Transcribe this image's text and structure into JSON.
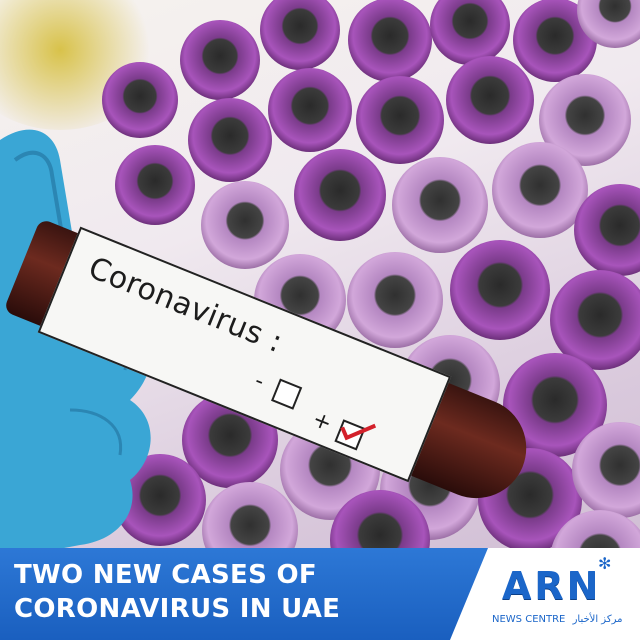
{
  "photo": {
    "vial_label": "Coronavirus :",
    "negative_mark": "-",
    "positive_mark": "+",
    "checked_icon": "check-mark-icon",
    "colors": {
      "glove": "#39a7d6",
      "tube_cap": "#a14bb3",
      "tube_cap_light": "#c98fd4",
      "check": "#d3212b"
    }
  },
  "banner": {
    "headline_line1": "TWO NEW CASES OF",
    "headline_line2": "CORONAVIRUS IN UAE",
    "colors": {
      "blue": "#1f66c8",
      "white": "#ffffff"
    }
  },
  "logo": {
    "wordmark": "ARN",
    "subtitle_en": "NEWS CENTRE",
    "subtitle_ar": "مركز الأخبار",
    "star_icon": "snowflake-icon"
  }
}
